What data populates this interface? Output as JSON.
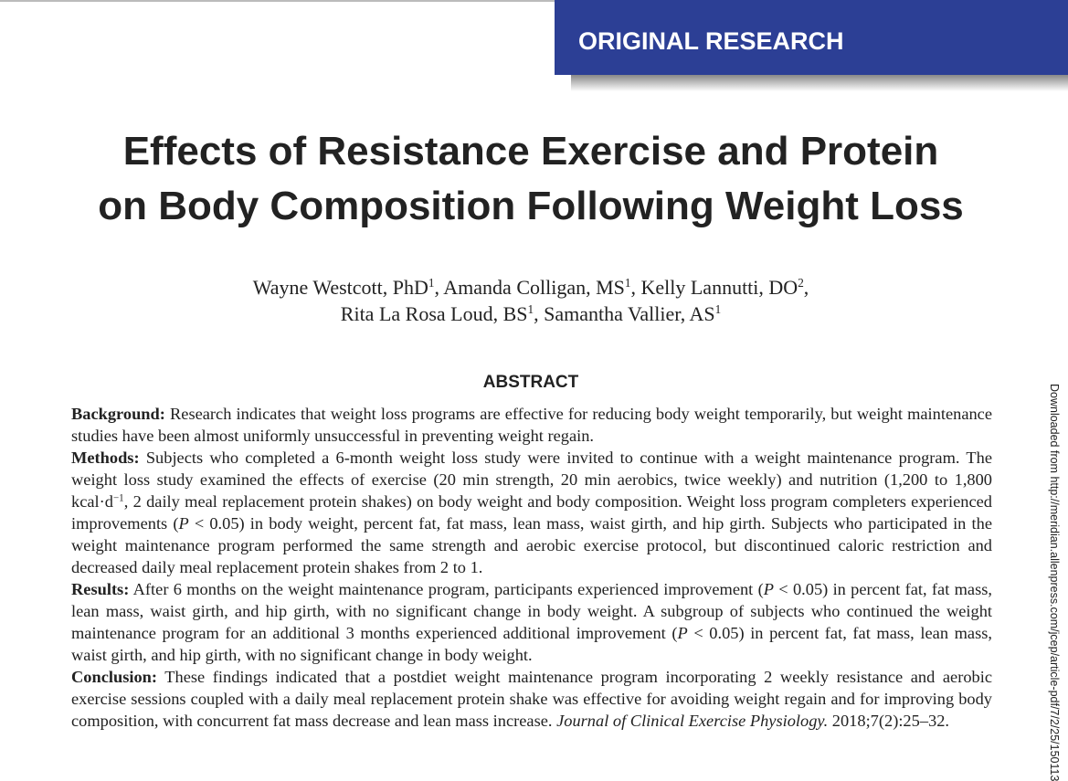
{
  "banner": "ORIGINAL RESEARCH",
  "title": {
    "lines": [
      "Effects of Resistance Exercise and Protein",
      "on Body Composition Following Weight Loss"
    ]
  },
  "authors": {
    "lines": [
      [
        {
          "text": "Wayne Westcott, PhD",
          "sup": "1"
        },
        {
          "text": ", Amanda Colligan, MS",
          "sup": "1"
        },
        {
          "text": ", Kelly Lannutti, DO",
          "sup": "2"
        },
        {
          "text": ","
        }
      ],
      [
        {
          "text": "Rita La Rosa Loud, BS",
          "sup": "1"
        },
        {
          "text": ", Samantha Vallier, AS",
          "sup": "1"
        }
      ]
    ]
  },
  "abstract": {
    "heading": "ABSTRACT",
    "paragraphs": [
      {
        "label": "Background:",
        "runs": [
          {
            "text": " Research indicates that weight loss programs are effective for reducing body weight temporarily, but weight maintenance studies have been almost uniformly unsuccessful in preventing weight regain."
          }
        ]
      },
      {
        "label": "Methods:",
        "runs": [
          {
            "text": " Subjects who completed a 6-month weight loss study were invited to continue with a weight maintenance program. The weight loss study examined the effects of exercise (20 min strength, 20 min aerobics, twice weekly) and nutrition (1,200 to 1,800 kcal·d"
          },
          {
            "text": "−1",
            "style": "sup"
          },
          {
            "text": ", 2 daily meal replacement protein shakes) on body weight and body composition. Weight loss program completers experienced improvements ("
          },
          {
            "text": "P",
            "style": "italic"
          },
          {
            "text": " < 0.05) in body weight, percent fat, fat mass, lean mass, waist girth, and hip girth. Subjects who participated in the weight maintenance program performed the same strength and aerobic exercise protocol, but discontinued caloric restriction and decreased daily meal replacement protein shakes from 2 to 1."
          }
        ]
      },
      {
        "label": "Results:",
        "runs": [
          {
            "text": " After 6 months on the weight maintenance program, participants experienced improvement ("
          },
          {
            "text": "P",
            "style": "italic"
          },
          {
            "text": " < 0.05) in percent fat, fat mass, lean mass, waist girth, and hip girth, with no significant change in body weight. A subgroup of subjects who continued the weight maintenance program for an additional 3 months experienced additional improvement ("
          },
          {
            "text": "P",
            "style": "italic"
          },
          {
            "text": " < 0.05) in percent fat, fat mass, lean mass, waist girth, and hip girth, with no significant change in body weight."
          }
        ]
      },
      {
        "label": "Conclusion:",
        "runs": [
          {
            "text": " These findings indicated that a postdiet weight maintenance program incorporating 2 weekly resistance and aerobic exercise sessions coupled with a daily meal replacement protein shake was effective for avoiding weight regain and for improving body composition, with concurrent fat mass decrease and lean mass increase. "
          },
          {
            "text": "Journal of Clinical Exercise Physiology.",
            "style": "italic"
          },
          {
            "text": " 2018;7(2):25–32."
          }
        ]
      }
    ]
  },
  "side_note": "Downloaded from http://meridian.allenpress.com/jcep/article-pdf/7/2/25/150113"
}
